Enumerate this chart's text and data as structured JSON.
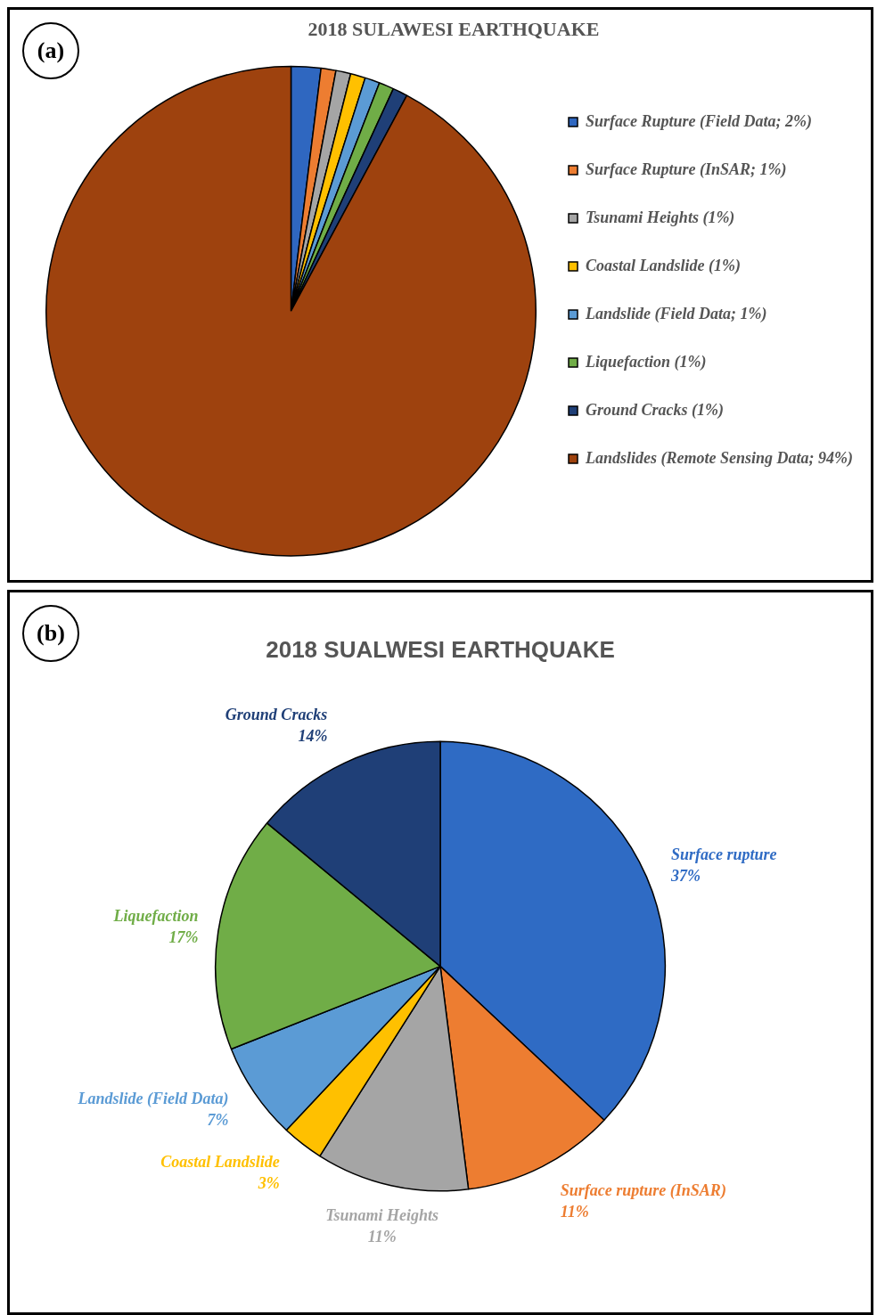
{
  "chart_data": [
    {
      "type": "pie",
      "title": "2018 SULAWESI EARTHQUAKE",
      "annotations": [
        "(a)"
      ],
      "legend": "right",
      "categories": [
        "Surface Rupture (Field Data; 2%)",
        "Surface Rupture (InSAR; 1%)",
        "Tsunami Heights (1%)",
        "Coastal Landslide (1%)",
        "Landslide (Field Data; 1%)",
        "Liquefaction (1%)",
        "Ground Cracks (1%)",
        "Landslides (Remote Sensing Data; 94%)"
      ],
      "values": [
        2,
        1,
        1,
        1,
        1,
        1,
        1,
        94
      ],
      "colors": [
        "#2f67c0",
        "#ed7d31",
        "#a5a5a5",
        "#ffc000",
        "#5b9bd5",
        "#70ad47",
        "#1f3f77",
        "#9e420e"
      ]
    },
    {
      "type": "pie",
      "title": "2018 SUALWESI EARTHQUAKE",
      "annotations": [
        "(b)"
      ],
      "legend": false,
      "categories": [
        "Surface rupture",
        "Surface rupture (InSAR)",
        "Tsunami Heights",
        "Coastal Landslide",
        "Landslide (Field Data)",
        "Liquefaction",
        "Ground Cracks"
      ],
      "values": [
        37,
        11,
        11,
        3,
        7,
        17,
        14
      ],
      "value_labels": [
        "37%",
        "11%",
        "11%",
        "3%",
        "7%",
        "17%",
        "14%"
      ],
      "colors": [
        "#2f6bc4",
        "#ed7d31",
        "#a5a5a5",
        "#ffc000",
        "#5b9bd5",
        "#70ad47",
        "#1f3f77"
      ]
    }
  ]
}
